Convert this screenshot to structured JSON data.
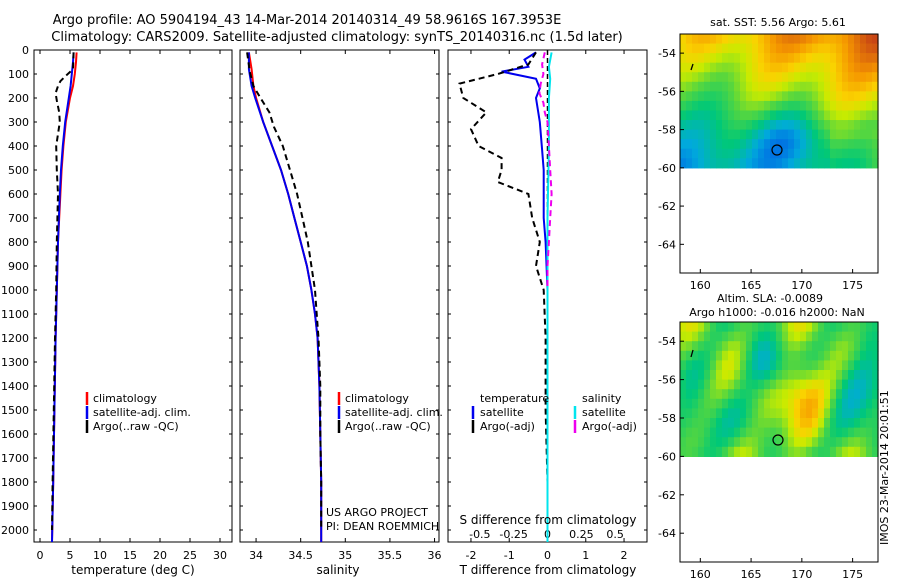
{
  "title_line1": "Argo profile: AO 5904194_43 14-Mar-2014 20140314_49 58.9616S 167.3953E",
  "title_line2": "Climatology: CARS2009. Satellite-adjusted climatology: synTS_20140316.nc (1.5d later)",
  "timestamp": "IMOS 23-Mar-2014 20:01:51",
  "colors": {
    "climatology": "#ff0000",
    "satellite": "#0000ee",
    "argo": "#000000",
    "sal_satellite": "#00e5ee",
    "sal_argo": "#ee00ee"
  },
  "chart_data": [
    {
      "type": "line",
      "name": "temperature",
      "xlabel": "temperature (deg C)",
      "ylabel": "",
      "xlim": [
        -1,
        32
      ],
      "ylim": [
        2050,
        0
      ],
      "xticks": [
        "0",
        "5",
        "10",
        "15",
        "20",
        "25",
        "30"
      ],
      "yticks": [
        "0",
        "100",
        "200",
        "300",
        "400",
        "500",
        "600",
        "700",
        "800",
        "900",
        "1000",
        "1100",
        "1200",
        "1300",
        "1400",
        "1500",
        "1600",
        "1700",
        "1800",
        "1900",
        "2000"
      ],
      "legend": [
        "climatology",
        "satellite-adj. clim.",
        "Argo(..raw -QC)"
      ],
      "series": [
        {
          "name": "climatology",
          "style": "solid",
          "color": "#ff0000",
          "depth": [
            10,
            50,
            100,
            150,
            200,
            300,
            400,
            500,
            600,
            800,
            1000,
            1200,
            1500,
            1800,
            2050
          ],
          "value": [
            6.1,
            6.0,
            5.8,
            5.5,
            5.0,
            4.3,
            3.9,
            3.6,
            3.4,
            3.0,
            2.8,
            2.6,
            2.4,
            2.2,
            2.0
          ]
        },
        {
          "name": "satellite-adj. clim.",
          "style": "solid",
          "color": "#0000ee",
          "depth": [
            10,
            50,
            100,
            150,
            200,
            300,
            400,
            500,
            600,
            800,
            1000,
            1200,
            1500,
            1800,
            2050
          ],
          "value": [
            5.6,
            5.5,
            5.3,
            5.1,
            4.8,
            4.2,
            3.8,
            3.5,
            3.3,
            3.0,
            2.8,
            2.6,
            2.4,
            2.2,
            2.0
          ]
        },
        {
          "name": "Argo(..raw -QC)",
          "style": "dashed",
          "color": "#000000",
          "depth": [
            10,
            80,
            110,
            130,
            150,
            180,
            210,
            260,
            300,
            350,
            400,
            500,
            600,
            700,
            800,
            1000,
            1200,
            1500,
            1800,
            2000
          ],
          "value": [
            5.6,
            5.5,
            4.2,
            3.4,
            3.0,
            2.6,
            2.8,
            3.2,
            3.3,
            3.0,
            2.7,
            2.8,
            3.0,
            2.9,
            2.8,
            2.7,
            2.5,
            2.3,
            2.1,
            2.0
          ]
        }
      ]
    },
    {
      "type": "line",
      "name": "salinity",
      "xlabel": "salinity",
      "xlim": [
        33.82,
        36.05
      ],
      "ylim": [
        2050,
        0
      ],
      "xticks": [
        "34",
        "34.5",
        "35",
        "35.5",
        "36"
      ],
      "legend": [
        "climatology",
        "satellite-adj. clim.",
        "Argo(..raw -QC)"
      ],
      "annotation": [
        "US ARGO PROJECT",
        "PI: DEAN ROEMMICH"
      ],
      "series": [
        {
          "name": "climatology",
          "style": "solid",
          "color": "#ff0000",
          "depth": [
            10,
            80,
            150,
            200,
            300,
            400,
            500,
            600,
            700,
            800,
            900,
            1000,
            1100,
            1200,
            1400,
            1600,
            1800,
            2050
          ],
          "value": [
            33.92,
            33.95,
            33.97,
            34.0,
            34.08,
            34.18,
            34.28,
            34.36,
            34.43,
            34.5,
            34.57,
            34.62,
            34.66,
            34.69,
            34.71,
            34.72,
            34.73,
            34.73
          ]
        },
        {
          "name": "satellite-adj. clim.",
          "style": "solid",
          "color": "#0000ee",
          "depth": [
            10,
            80,
            150,
            200,
            300,
            400,
            500,
            600,
            700,
            800,
            900,
            1000,
            1100,
            1200,
            1400,
            1600,
            1800,
            2050
          ],
          "value": [
            33.92,
            33.92,
            33.95,
            33.99,
            34.08,
            34.18,
            34.28,
            34.36,
            34.43,
            34.5,
            34.57,
            34.62,
            34.66,
            34.69,
            34.71,
            34.72,
            34.73,
            34.73
          ]
        },
        {
          "name": "Argo(..raw -QC)",
          "style": "dashed",
          "color": "#000000",
          "depth": [
            10,
            90,
            150,
            200,
            260,
            320,
            400,
            500,
            600,
            700,
            800,
            900,
            1000,
            1100,
            1200,
            1400,
            1600,
            1800,
            2000
          ],
          "value": [
            33.9,
            33.93,
            33.97,
            34.05,
            34.15,
            34.2,
            34.3,
            34.38,
            34.46,
            34.52,
            34.58,
            34.62,
            34.66,
            34.68,
            34.7,
            34.72,
            34.72,
            34.73,
            34.73
          ]
        }
      ]
    },
    {
      "type": "line",
      "name": "difference",
      "xlabel": "T difference from climatology",
      "xlabel_top": "S difference from climatology",
      "xlim": [
        -2.6,
        2.6
      ],
      "ylim": [
        2050,
        0
      ],
      "xticks": [
        "-2",
        "-1",
        "0",
        "1",
        "2"
      ],
      "xticks_s": [
        "-0.5",
        "-0.25",
        "0",
        "0.25",
        "0.5"
      ],
      "legend_t_title": "temperature",
      "legend_s_title": "salinity",
      "legend_t": [
        "satellite",
        "Argo(-adj)"
      ],
      "legend_s": [
        "satellite",
        "Argo(-adj)"
      ],
      "series": [
        {
          "name": "T satellite",
          "style": "solid",
          "color": "#0000ee",
          "depth": [
            10,
            40,
            70,
            90,
            120,
            160,
            200,
            300,
            400,
            500,
            700,
            800,
            1000,
            1200,
            1500,
            2000
          ],
          "value": [
            -0.3,
            -0.6,
            -0.5,
            -1.2,
            -0.3,
            -0.2,
            -0.3,
            -0.2,
            -0.15,
            -0.1,
            -0.1,
            -0.05,
            0,
            0,
            0,
            0
          ]
        },
        {
          "name": "T Argo(-adj)",
          "style": "dashed",
          "color": "#000000",
          "depth": [
            10,
            60,
            100,
            140,
            200,
            260,
            330,
            400,
            450,
            500,
            550,
            600,
            700,
            800,
            900,
            1000,
            1200,
            1500,
            1800,
            2050
          ],
          "value": [
            -0.3,
            -0.5,
            -1.3,
            -2.3,
            -2.2,
            -1.6,
            -2.0,
            -1.8,
            -1.2,
            -1.2,
            -1.3,
            -0.5,
            -0.4,
            -0.2,
            -0.3,
            -0.1,
            -0.05,
            -0.05,
            0,
            0
          ]
        },
        {
          "name": "S satellite",
          "style": "solid",
          "color": "#00e5ee",
          "depth": [
            10,
            70,
            120,
            200,
            400,
            700,
            1000,
            1500,
            2050
          ],
          "value": [
            0.03,
            0.01,
            0.02,
            0.01,
            0.01,
            0.0,
            0.0,
            0.0,
            0.0
          ]
        },
        {
          "name": "S Argo(-adj)",
          "style": "dashed",
          "color": "#ee00ee",
          "depth": [
            10,
            60,
            100,
            140,
            180,
            220,
            260,
            300,
            400,
            500,
            600,
            700,
            800,
            900,
            1000
          ],
          "value": [
            -0.02,
            -0.04,
            -0.03,
            -0.05,
            -0.06,
            -0.03,
            -0.02,
            0.0,
            0.01,
            0.02,
            0.03,
            0.02,
            0.01,
            0.0,
            0.0
          ]
        }
      ]
    },
    {
      "type": "heatmap",
      "name": "sst_map",
      "title": "sat. SST: 5.56 Argo: 5.61",
      "xlim": [
        158,
        177.5
      ],
      "ylim": [
        -65.5,
        -53
      ],
      "xticks": [
        "160",
        "165",
        "170",
        "175"
      ],
      "yticks": [
        "-54",
        "-56",
        "-58",
        "-60",
        "-62",
        "-64"
      ],
      "data_rows_lat": [
        -53,
        -60
      ],
      "argo_position": {
        "lon": 167.4,
        "lat": -59.0
      }
    },
    {
      "type": "heatmap",
      "name": "sla_map",
      "title": "Altim. SLA: -0.0089",
      "subtitle": "Argo h1000: -0.016 h2000: NaN",
      "xlim": [
        158,
        177.5
      ],
      "ylim": [
        -65.5,
        -53
      ],
      "xticks": [
        "160",
        "165",
        "170",
        "175"
      ],
      "yticks": [
        "-54",
        "-56",
        "-58",
        "-60",
        "-62",
        "-64"
      ],
      "data_rows_lat": [
        -53,
        -60
      ],
      "argo_position": {
        "lon": 167.4,
        "lat": -59.0
      }
    }
  ]
}
